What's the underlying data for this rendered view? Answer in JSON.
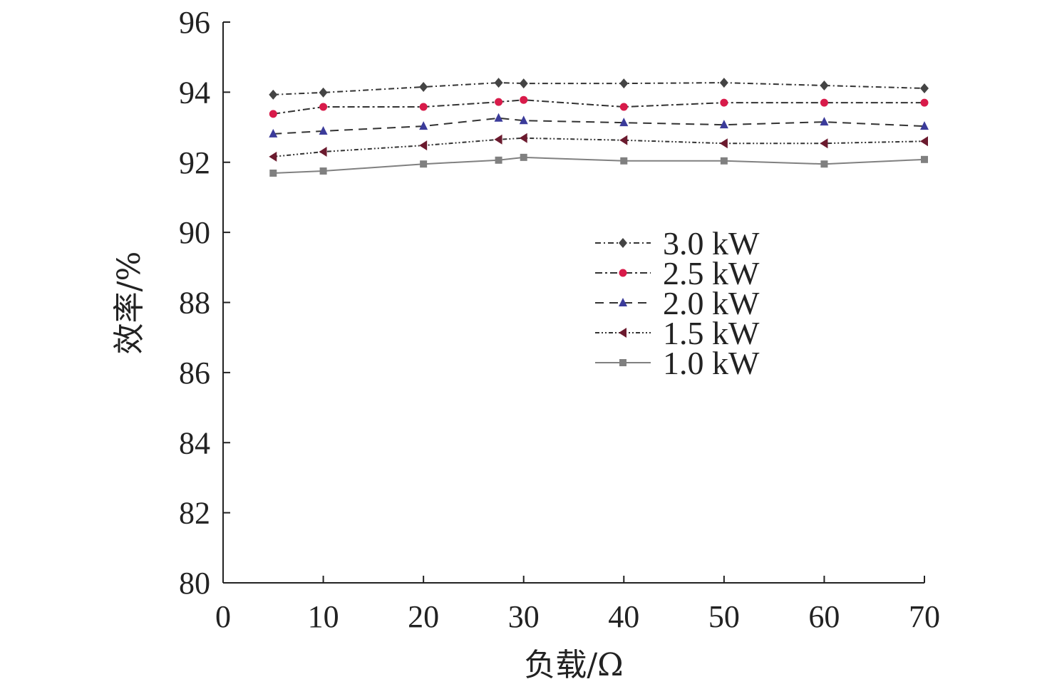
{
  "chart_data": {
    "type": "line",
    "xlabel": "负载/Ω",
    "ylabel": "效率/%",
    "xlim": [
      0,
      70
    ],
    "ylim": [
      80,
      96
    ],
    "xticks": [
      0,
      10,
      20,
      30,
      40,
      50,
      60,
      70
    ],
    "yticks": [
      80,
      82,
      84,
      86,
      88,
      90,
      92,
      94,
      96
    ],
    "grid": false,
    "legend_position": "center-right",
    "x": [
      5,
      10,
      20,
      27.5,
      30,
      40,
      50,
      60,
      70
    ],
    "series": [
      {
        "name": "3.0 kW",
        "color": "#444444",
        "marker": "diamond",
        "dash": "8 4 2 4",
        "values": [
          93.93,
          93.99,
          94.15,
          94.27,
          94.25,
          94.25,
          94.27,
          94.19,
          94.11
        ]
      },
      {
        "name": "2.5 kW",
        "color": "#d81b4a",
        "marker": "circle",
        "dash": "10 4 3 4",
        "values": [
          93.38,
          93.58,
          93.58,
          93.72,
          93.78,
          93.58,
          93.7,
          93.7,
          93.7
        ]
      },
      {
        "name": "2.0 kW",
        "color": "#3b3b9a",
        "marker": "triangle-up",
        "dash": "12 8",
        "values": [
          92.81,
          92.89,
          93.03,
          93.26,
          93.19,
          93.13,
          93.07,
          93.15,
          93.03
        ]
      },
      {
        "name": "1.5 kW",
        "color": "#6b1a2e",
        "marker": "triangle-left",
        "dash": "6 3 2 3 2 3",
        "values": [
          92.16,
          92.3,
          92.48,
          92.65,
          92.69,
          92.63,
          92.54,
          92.54,
          92.6
        ]
      },
      {
        "name": "1.0 kW",
        "color": "#808080",
        "marker": "square",
        "dash": "",
        "values": [
          91.69,
          91.75,
          91.95,
          92.06,
          92.14,
          92.04,
          92.04,
          91.95,
          92.08
        ]
      }
    ]
  }
}
